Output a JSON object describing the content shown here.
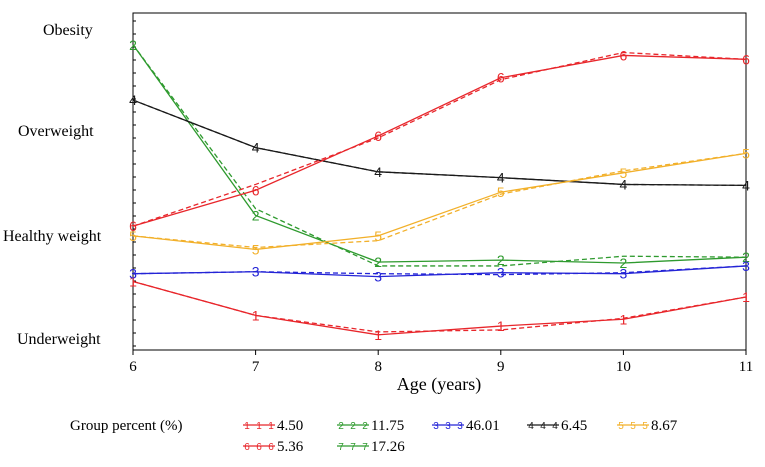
{
  "chart_data": {
    "type": "line",
    "xlabel": "Age (years)",
    "x": [
      6,
      7,
      8,
      9,
      10,
      11
    ],
    "xlim": [
      6,
      11
    ],
    "ylim": [
      0.5,
      4.75
    ],
    "ytick_values": [
      1,
      2,
      3,
      4
    ],
    "ytick_labels": [
      "Underweight",
      "Healthy weight",
      "Overweight",
      "Obesity"
    ],
    "legend_title": "Group percent (%)",
    "series": [
      {
        "name": "1",
        "percent": "4.50",
        "color": "#e8262b",
        "values": [
          1.48,
          1.13,
          0.93,
          1.02,
          1.09,
          1.32
        ],
        "fitted": [
          1.48,
          1.13,
          0.96,
          0.98,
          1.1,
          1.32
        ]
      },
      {
        "name": "2",
        "percent": "11.75",
        "color": "#2e9a2e",
        "values": [
          3.92,
          2.16,
          1.68,
          1.7,
          1.67,
          1.73
        ],
        "fitted": [
          3.92,
          2.23,
          1.64,
          1.64,
          1.74,
          1.73
        ]
      },
      {
        "name": "3",
        "percent": "46.01",
        "color": "#2424d6",
        "values": [
          1.56,
          1.58,
          1.53,
          1.57,
          1.56,
          1.64
        ],
        "fitted": [
          1.56,
          1.58,
          1.56,
          1.55,
          1.57,
          1.64
        ]
      },
      {
        "name": "4",
        "percent": "6.45",
        "color": "#1a1a1a",
        "values": [
          3.35,
          2.86,
          2.61,
          2.55,
          2.48,
          2.47
        ],
        "fitted": [
          3.35,
          2.86,
          2.61,
          2.55,
          2.48,
          2.47
        ]
      },
      {
        "name": "5",
        "percent": "8.67",
        "color": "#f2b02a",
        "values": [
          1.95,
          1.81,
          1.95,
          2.4,
          2.6,
          2.8
        ],
        "fitted": [
          1.95,
          1.83,
          1.9,
          2.38,
          2.62,
          2.8
        ]
      },
      {
        "name": "6",
        "percent": "5.36",
        "color": "#e8262b",
        "values": [
          2.05,
          2.42,
          2.98,
          3.58,
          3.81,
          3.77
        ],
        "fitted": [
          2.05,
          2.48,
          2.96,
          3.56,
          3.84,
          3.77
        ]
      },
      {
        "name": "7",
        "percent": "17.26",
        "color": "#2e9a2e",
        "values": [
          4.6,
          4.55,
          4.58,
          4.61,
          4.61,
          4.58
        ],
        "fitted": [
          4.6,
          4.57,
          4.58,
          4.61,
          4.63,
          4.58
        ]
      }
    ]
  }
}
